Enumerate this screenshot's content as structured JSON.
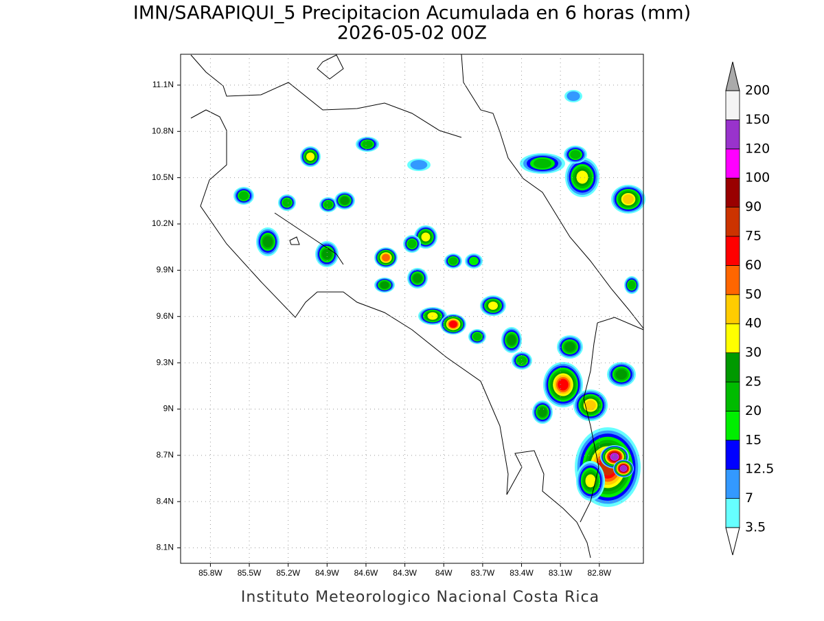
{
  "title": "IMN/SARAPIQUI_5 Precipitacion Acumulada en 6 horas (mm)",
  "subtitle": "2026-05-02 00Z",
  "footer": "Instituto Meteorologico Nacional Costa Rica",
  "map": {
    "lonlim": [
      -86.03,
      -82.46
    ],
    "latlim": [
      8.0,
      11.3
    ],
    "lat_ticks": [
      {
        "value": 11.1,
        "label": "11.1N"
      },
      {
        "value": 10.8,
        "label": "10.8N"
      },
      {
        "value": 10.5,
        "label": "10.5N"
      },
      {
        "value": 10.2,
        "label": "10.2N"
      },
      {
        "value": 9.9,
        "label": "9.9N"
      },
      {
        "value": 9.6,
        "label": "9.6N"
      },
      {
        "value": 9.3,
        "label": "9.3N"
      },
      {
        "value": 9,
        "label": "9N"
      },
      {
        "value": 8.7,
        "label": "8.7N"
      },
      {
        "value": 8.4,
        "label": "8.4N"
      },
      {
        "value": 8.1,
        "label": "8.1N"
      }
    ],
    "lon_ticks": [
      {
        "value": -85.8,
        "label": "85.8W"
      },
      {
        "value": -85.5,
        "label": "85.5W"
      },
      {
        "value": -85.2,
        "label": "85.2W"
      },
      {
        "value": -84.9,
        "label": "84.9W"
      },
      {
        "value": -84.6,
        "label": "84.6W"
      },
      {
        "value": -84.3,
        "label": "84.3W"
      },
      {
        "value": -84,
        "label": "84W"
      },
      {
        "value": -83.7,
        "label": "83.7W"
      },
      {
        "value": -83.4,
        "label": "83.4W"
      },
      {
        "value": -83.1,
        "label": "83.1W"
      },
      {
        "value": -82.8,
        "label": "82.8W"
      }
    ]
  },
  "colorbar": {
    "levels": [
      3.5,
      7,
      12.5,
      15,
      20,
      25,
      30,
      40,
      50,
      60,
      75,
      90,
      100,
      120,
      150,
      200
    ],
    "colors": [
      "#66ffff",
      "#3399ff",
      "#0000ff",
      "#00ee00",
      "#00bb00",
      "#009900",
      "#ffff00",
      "#ffcc00",
      "#ff6600",
      "#ff0000",
      "#cc3300",
      "#990000",
      "#ff00ff",
      "#9933cc",
      "#f4f4f4"
    ],
    "under_color": "#ffffff",
    "over_color": "#aaaaaa"
  }
}
